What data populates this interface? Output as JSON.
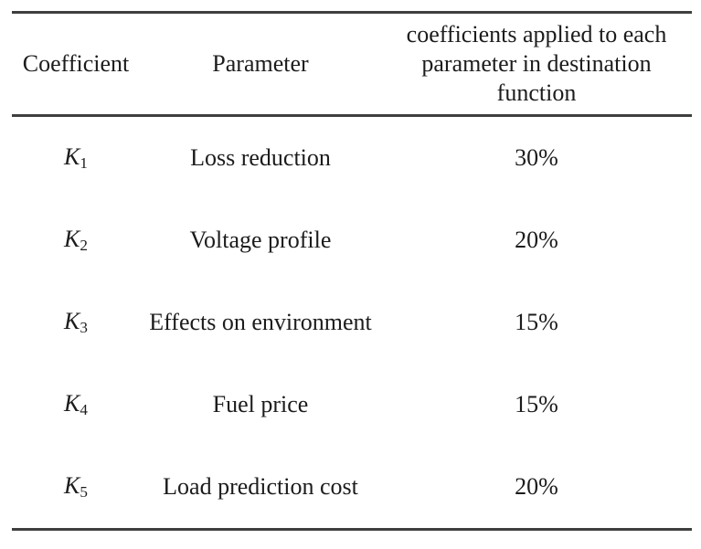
{
  "table": {
    "header": {
      "coefficient": "Coefficient",
      "parameter": "Parameter",
      "weights_line1": "coefficients applied to each",
      "weights_line2": "parameter in destination function"
    },
    "rows": [
      {
        "coefficient_base": "K",
        "coefficient_sub": "1",
        "parameter": "Loss reduction",
        "weight": "30%"
      },
      {
        "coefficient_base": "K",
        "coefficient_sub": "2",
        "parameter": "Voltage profile",
        "weight": "20%"
      },
      {
        "coefficient_base": "K",
        "coefficient_sub": "3",
        "parameter": "Effects on environment",
        "weight": "15%"
      },
      {
        "coefficient_base": "K",
        "coefficient_sub": "4",
        "parameter": "Fuel price",
        "weight": "15%"
      },
      {
        "coefficient_base": "K",
        "coefficient_sub": "5",
        "parameter": "Load prediction cost",
        "weight": "20%"
      }
    ],
    "colors": {
      "text": "#1c1c1c",
      "rule": "#3f3f3f",
      "background": "#ffffff"
    }
  },
  "chart_data": {
    "type": "table",
    "columns": [
      "Coefficient",
      "Parameter",
      "coefficients applied to each parameter in destination function"
    ],
    "rows": [
      [
        "K1",
        "Loss reduction",
        "30%"
      ],
      [
        "K2",
        "Voltage profile",
        "20%"
      ],
      [
        "K3",
        "Effects on environment",
        "15%"
      ],
      [
        "K4",
        "Fuel price",
        "15%"
      ],
      [
        "K5",
        "Load prediction cost",
        "20%"
      ]
    ]
  }
}
